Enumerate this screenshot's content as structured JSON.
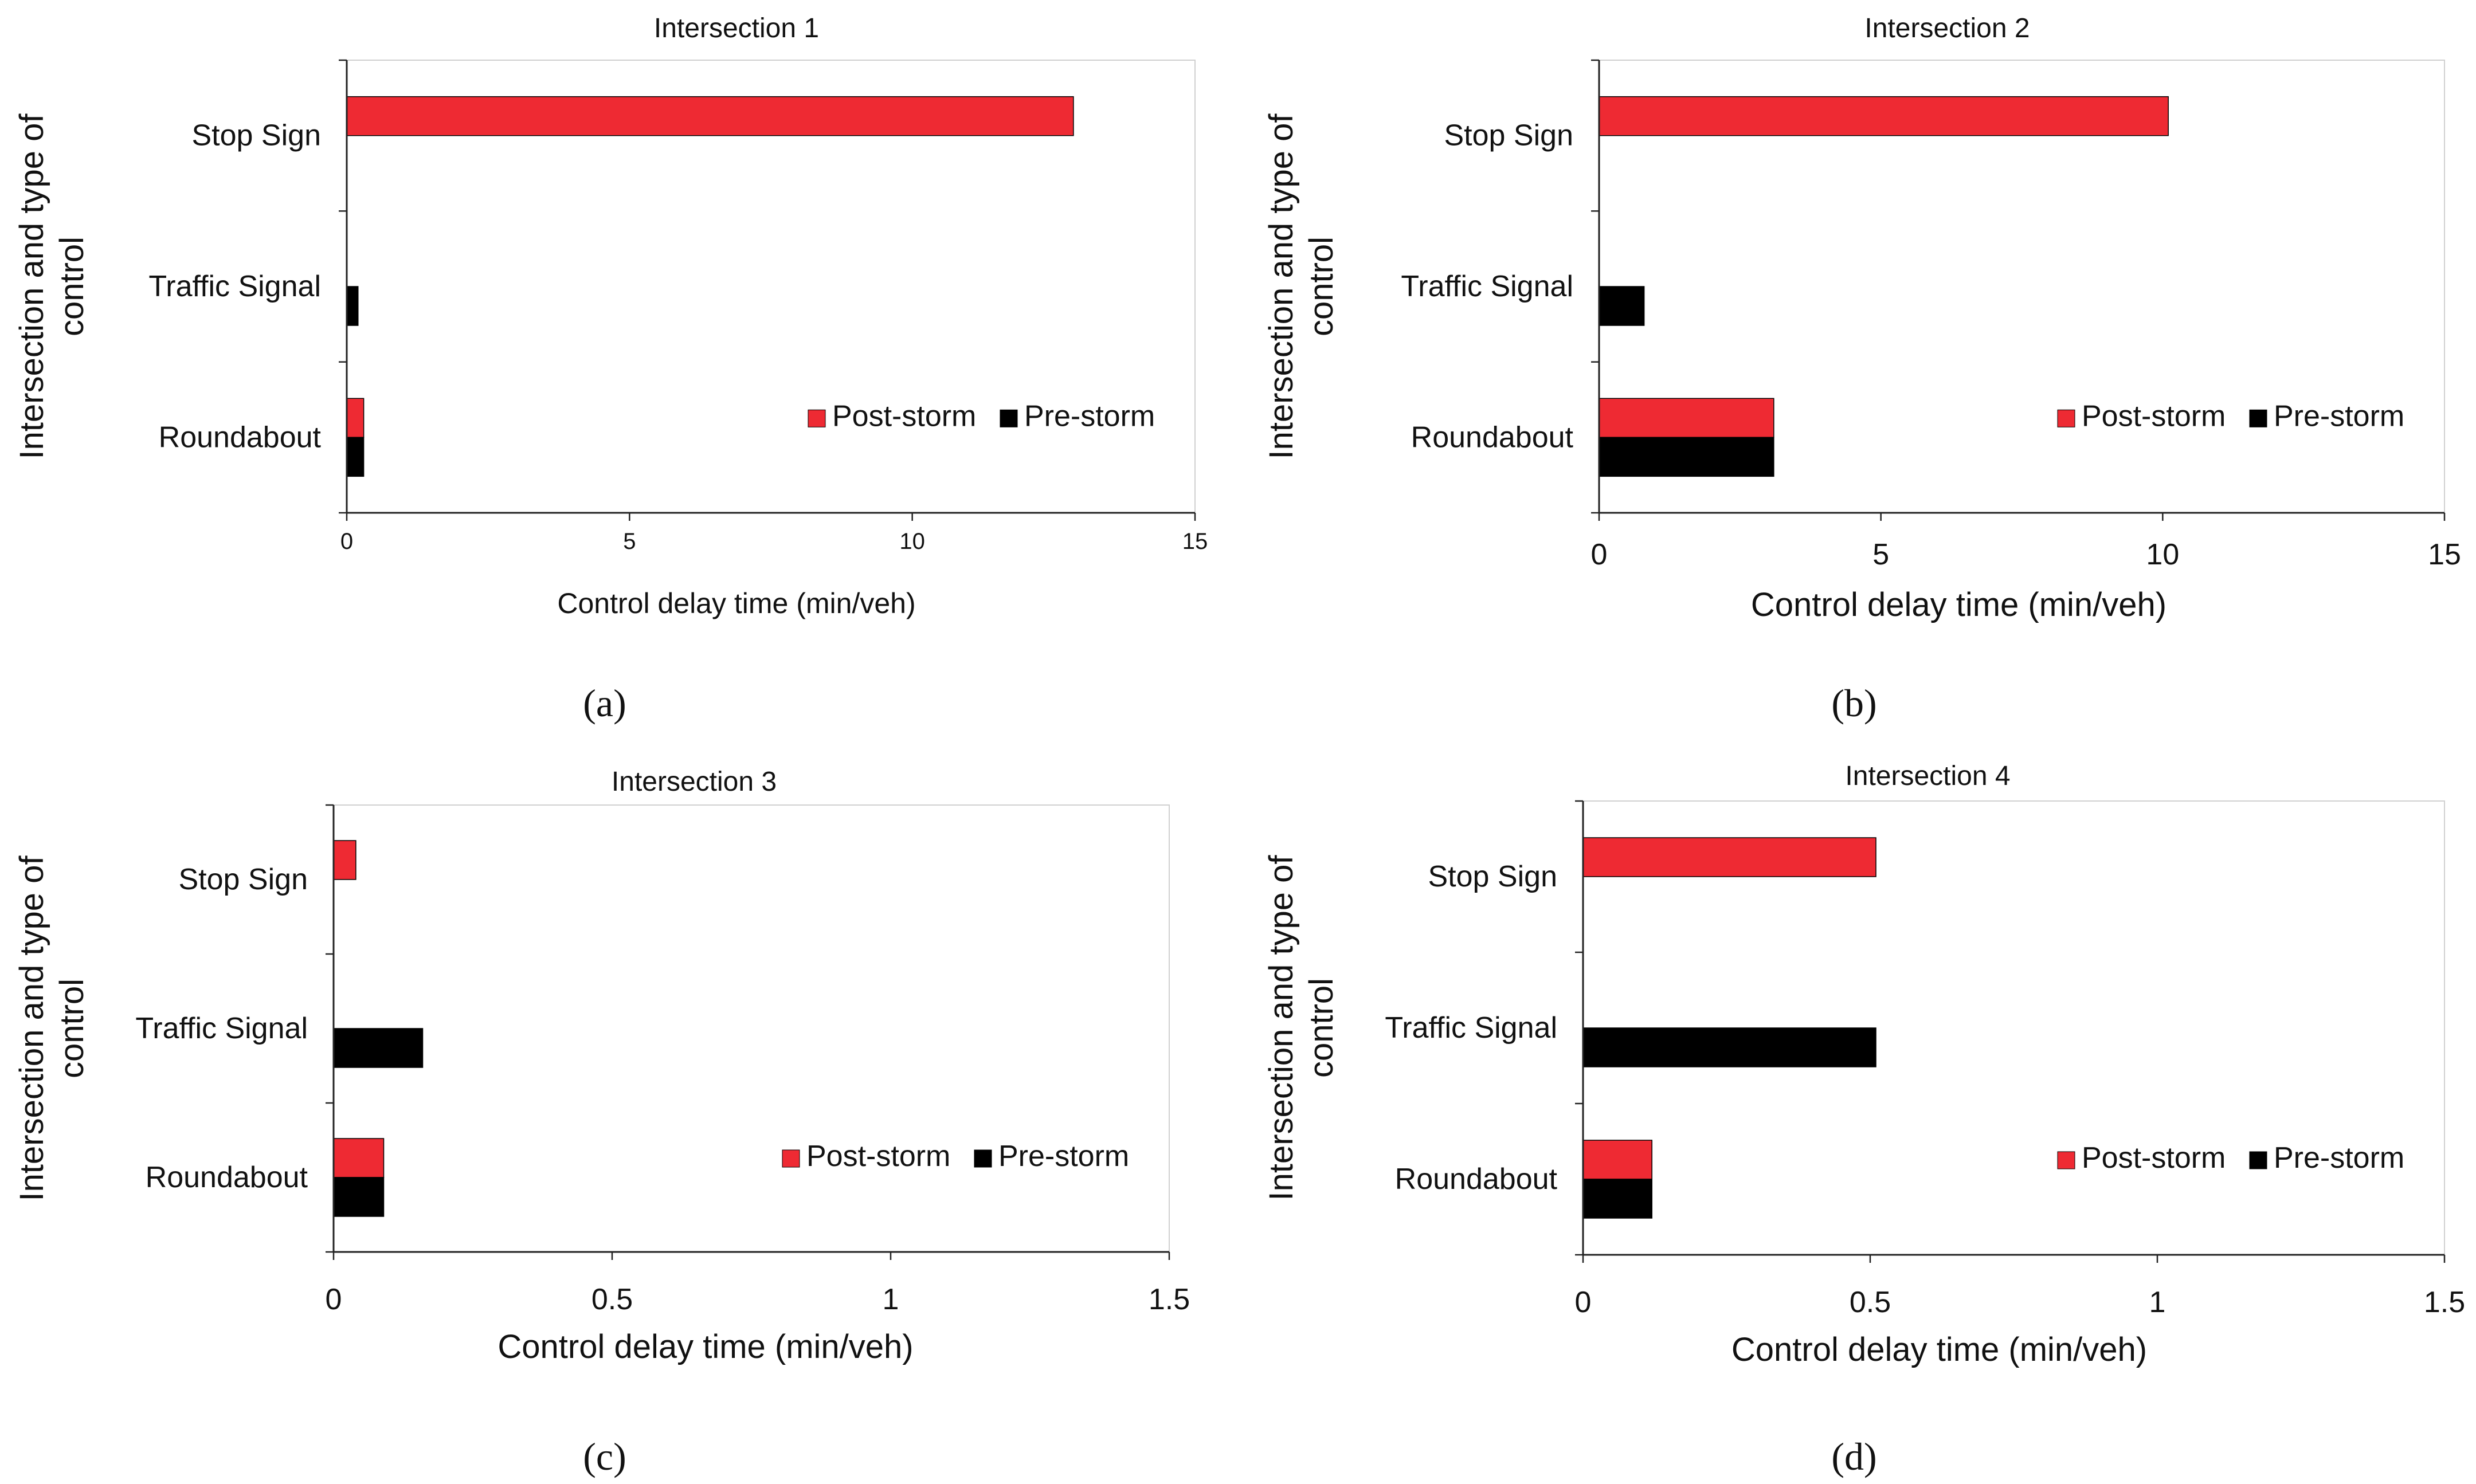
{
  "figure": {
    "legend_placement": "right",
    "colors": {
      "post": "#EE2A33",
      "pre": "#000000",
      "axis": "#222222"
    }
  },
  "chart_data": [
    {
      "type": "bar",
      "orientation": "horizontal",
      "title": "Intersection 1",
      "xlabel": "Control delay time (min/veh)",
      "ylabel_lines": [
        "Intersection and type of",
        "control"
      ],
      "caption": "(a)",
      "categories": [
        "Stop Sign",
        "Traffic Signal",
        "Roundabout"
      ],
      "series": [
        {
          "name": "Post-storm",
          "values": [
            12.85,
            0,
            0.3
          ]
        },
        {
          "name": "Pre-storm",
          "values": [
            0,
            0.2,
            0.3
          ]
        }
      ],
      "xlim": [
        0,
        15
      ],
      "xticks": [
        0,
        5,
        10,
        15
      ],
      "xtick_labels": [
        "0",
        "5",
        "10",
        "15"
      ]
    },
    {
      "type": "bar",
      "orientation": "horizontal",
      "title": "Intersection 2",
      "xlabel": "Control delay time (min/veh)",
      "ylabel_lines": [
        "Intersection and type of",
        "control"
      ],
      "caption": "(b)",
      "categories": [
        "Stop Sign",
        "Traffic Signal",
        "Roundabout"
      ],
      "series": [
        {
          "name": "Post-storm",
          "values": [
            10.1,
            0,
            3.1
          ]
        },
        {
          "name": "Pre-storm",
          "values": [
            0,
            0.8,
            3.1
          ]
        }
      ],
      "xlim": [
        0,
        15
      ],
      "xticks": [
        0,
        5,
        10,
        15
      ],
      "xtick_labels": [
        "0",
        "5",
        "10",
        "15"
      ]
    },
    {
      "type": "bar",
      "orientation": "horizontal",
      "title": "Intersection 3",
      "xlabel": "Control delay time (min/veh)",
      "ylabel_lines": [
        "Intersection and type of",
        "control"
      ],
      "caption": "(c)",
      "categories": [
        "Stop Sign",
        "Traffic Signal",
        "Roundabout"
      ],
      "series": [
        {
          "name": "Post-storm",
          "values": [
            0.04,
            0,
            0.09
          ]
        },
        {
          "name": "Pre-storm",
          "values": [
            0,
            0.16,
            0.09
          ]
        }
      ],
      "xlim": [
        0,
        1.5
      ],
      "xticks": [
        0,
        0.5,
        1,
        1.5
      ],
      "xtick_labels": [
        "0",
        "0.5",
        "1",
        "1.5"
      ]
    },
    {
      "type": "bar",
      "orientation": "horizontal",
      "title": "Intersection 4",
      "xlabel": "Control delay time (min/veh)",
      "ylabel_lines": [
        "Intersection and type of",
        "control"
      ],
      "caption": "(d)",
      "categories": [
        "Stop Sign",
        "Traffic Signal",
        "Roundabout"
      ],
      "series": [
        {
          "name": "Post-storm",
          "values": [
            0.51,
            0,
            0.12
          ]
        },
        {
          "name": "Pre-storm",
          "values": [
            0,
            0.51,
            0.12
          ]
        }
      ],
      "xlim": [
        0,
        1.5
      ],
      "xticks": [
        0,
        0.5,
        1,
        1.5
      ],
      "xtick_labels": [
        "0",
        "0.5",
        "1",
        "1.5"
      ]
    }
  ]
}
